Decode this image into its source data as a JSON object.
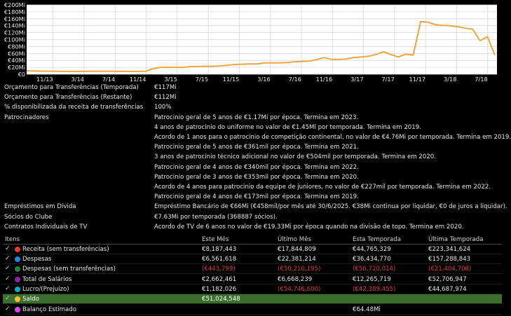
{
  "chart_data": {
    "type": "line",
    "x_labels": [
      "11/13",
      "3/14",
      "7/14",
      "11/14",
      "3/15",
      "7/15",
      "11/15",
      "3/16",
      "7/16",
      "11/16",
      "3/17",
      "7/17",
      "11/17",
      "3/18",
      "7/18"
    ],
    "y_labels": [
      "€200Mi",
      "€180Mi",
      "€160Mi",
      "€140Mi",
      "€120Mi",
      "€100Mi",
      "€80Mi",
      "€60Mi",
      "€40Mi",
      "€20Mi",
      "€0"
    ],
    "ylim": [
      0,
      200
    ],
    "grid": true,
    "color": "#f0a63c",
    "points": [
      [
        0,
        10
      ],
      [
        2,
        9
      ],
      [
        4,
        8.5
      ],
      [
        6,
        8
      ],
      [
        8,
        8.5
      ],
      [
        10,
        8.5
      ],
      [
        12,
        8.5
      ],
      [
        14,
        8
      ],
      [
        16,
        8.5
      ],
      [
        17,
        16
      ],
      [
        18,
        20
      ],
      [
        20,
        20
      ],
      [
        21,
        20
      ],
      [
        22,
        22
      ],
      [
        24,
        23
      ],
      [
        25,
        23
      ],
      [
        26,
        24
      ],
      [
        27,
        26
      ],
      [
        28,
        28
      ],
      [
        29,
        29
      ],
      [
        30,
        30
      ],
      [
        31,
        30
      ],
      [
        32,
        33
      ],
      [
        33,
        33
      ],
      [
        34,
        33
      ],
      [
        35,
        34
      ],
      [
        36,
        36
      ],
      [
        37,
        37
      ],
      [
        38,
        38
      ],
      [
        39,
        42
      ],
      [
        40,
        48
      ],
      [
        41,
        43
      ],
      [
        42,
        43
      ],
      [
        43,
        44
      ],
      [
        44,
        48
      ],
      [
        45,
        50
      ],
      [
        46,
        52
      ],
      [
        47,
        57
      ],
      [
        48,
        65
      ],
      [
        49,
        57
      ],
      [
        50,
        50
      ],
      [
        51,
        58
      ],
      [
        52,
        55
      ],
      [
        53,
        152
      ],
      [
        54,
        150
      ],
      [
        55,
        143
      ],
      [
        56,
        141
      ],
      [
        57,
        140
      ],
      [
        58,
        137
      ],
      [
        59,
        133
      ],
      [
        60,
        130
      ],
      [
        61,
        97
      ],
      [
        62,
        108
      ],
      [
        63,
        55
      ]
    ],
    "x_domain": [
      0,
      63
    ]
  },
  "budget": {
    "rows": [
      {
        "key": "Orçamento para Transferências (Temporada)",
        "value": "€117Mi"
      },
      {
        "key": "Orçamento para Transferências (Restante)",
        "value": "€112Mi"
      },
      {
        "key": "% disponibilizada da receita de transferências",
        "value": "100%"
      }
    ]
  },
  "sponsors": {
    "label": "Patrocinadores",
    "items": [
      "Patrocinio geral de 5 anos de €1.17Mi por época. Termina em 2023.",
      "4 anos de patrocinio do uniforme no valor de €1.45Mi por temporada. Termina em 2019.",
      "Acordo de 1 anos para o patrocinio de competição continental, no valor de €4.76Mi por temporada. Termina em 2019.",
      "Patrocinio geral de 5 anos de €361mil por época. Termina em 2021.",
      "3 anos de patrocinio técnico adicional no valor de €504mil por temporada. Termina em 2020.",
      "Patrocinio geral de 4 anos de €340mil por época. Termina em 2022.",
      "Patrocinio geral de 3 anos de €353mil por época. Termina em 2020.",
      "Acordo de 4 anos para patrocinio da equipe de juniores, no valor de €227mil por temporada. Termina em 2022.",
      "Patrocinio geral de 4 anos de €173mil por época. Termina em 2019."
    ]
  },
  "other": {
    "rows": [
      {
        "key": "Empréstimos em Dívida",
        "value": "Empréstimo Bancário de €66Mi (€458mil/por mês até 30/6/2025. €38Mi continua por liquidar, €0 de juros a liquidar)."
      },
      {
        "key": "Sócios do Clube",
        "value": "€7.63Mi por temporada (368887 sócios)."
      },
      {
        "key": "Contratos Individuais de TV",
        "value": "Acordo de TV de 6 anos no valor de €19.33Mi por época quando na divisão de topo. Termina em 2020."
      }
    ]
  },
  "finance": {
    "headers": [
      "Itens",
      "Este Mês",
      "Último Mês",
      "Esta Temporada",
      "Última Temporada"
    ],
    "rows": [
      {
        "label": "Receita (sem transferências)",
        "dot": "#e53935",
        "checked": true,
        "vals": [
          "€8,187,443",
          "€17,844,809",
          "€44,765,329",
          "€223,341,624"
        ],
        "neg": [
          false,
          false,
          false,
          false
        ],
        "highlight": false
      },
      {
        "label": "Despesas",
        "dot": "#1e88e5",
        "checked": true,
        "vals": [
          "€6,561,618",
          "€22,381,214",
          "€36,434,770",
          "€157,288,843"
        ],
        "neg": [
          false,
          false,
          false,
          false
        ],
        "highlight": false
      },
      {
        "label": "Despesas (sem transferências)",
        "dot": "#2e7d32",
        "checked": true,
        "vals": [
          "(€443,799)",
          "(€50,210,195)",
          "(€50,720,014)",
          "(€21,404,708)"
        ],
        "neg": [
          true,
          true,
          true,
          true
        ],
        "highlight": false
      },
      {
        "label": "Total de Salários",
        "dot": "#8e24aa",
        "checked": true,
        "vals": [
          "€2,662,461",
          "€6,668,239",
          "€12,265,719",
          "€52,706,947"
        ],
        "neg": [
          false,
          false,
          false,
          false
        ],
        "highlight": false
      },
      {
        "label": "Lucro/(Prejuízo)",
        "dot": "#00acc1",
        "checked": true,
        "vals": [
          "€1,182,026",
          "(€54,746,600)",
          "(€42,389,455)",
          "€44,687,974"
        ],
        "neg": [
          false,
          true,
          true,
          false
        ],
        "highlight": false
      },
      {
        "label": "Saldo",
        "dot": "#fbc02d",
        "checked": true,
        "vals": [
          "€51,024,548",
          "",
          "",
          ""
        ],
        "neg": [
          false,
          false,
          false,
          false
        ],
        "highlight": true
      },
      {
        "label": "Balanço Estimado",
        "dot": "#e040fb",
        "checked": true,
        "vals": [
          "",
          "",
          "€64.48Mi",
          ""
        ],
        "neg": [
          false,
          false,
          false,
          false
        ],
        "highlight": false
      }
    ]
  }
}
